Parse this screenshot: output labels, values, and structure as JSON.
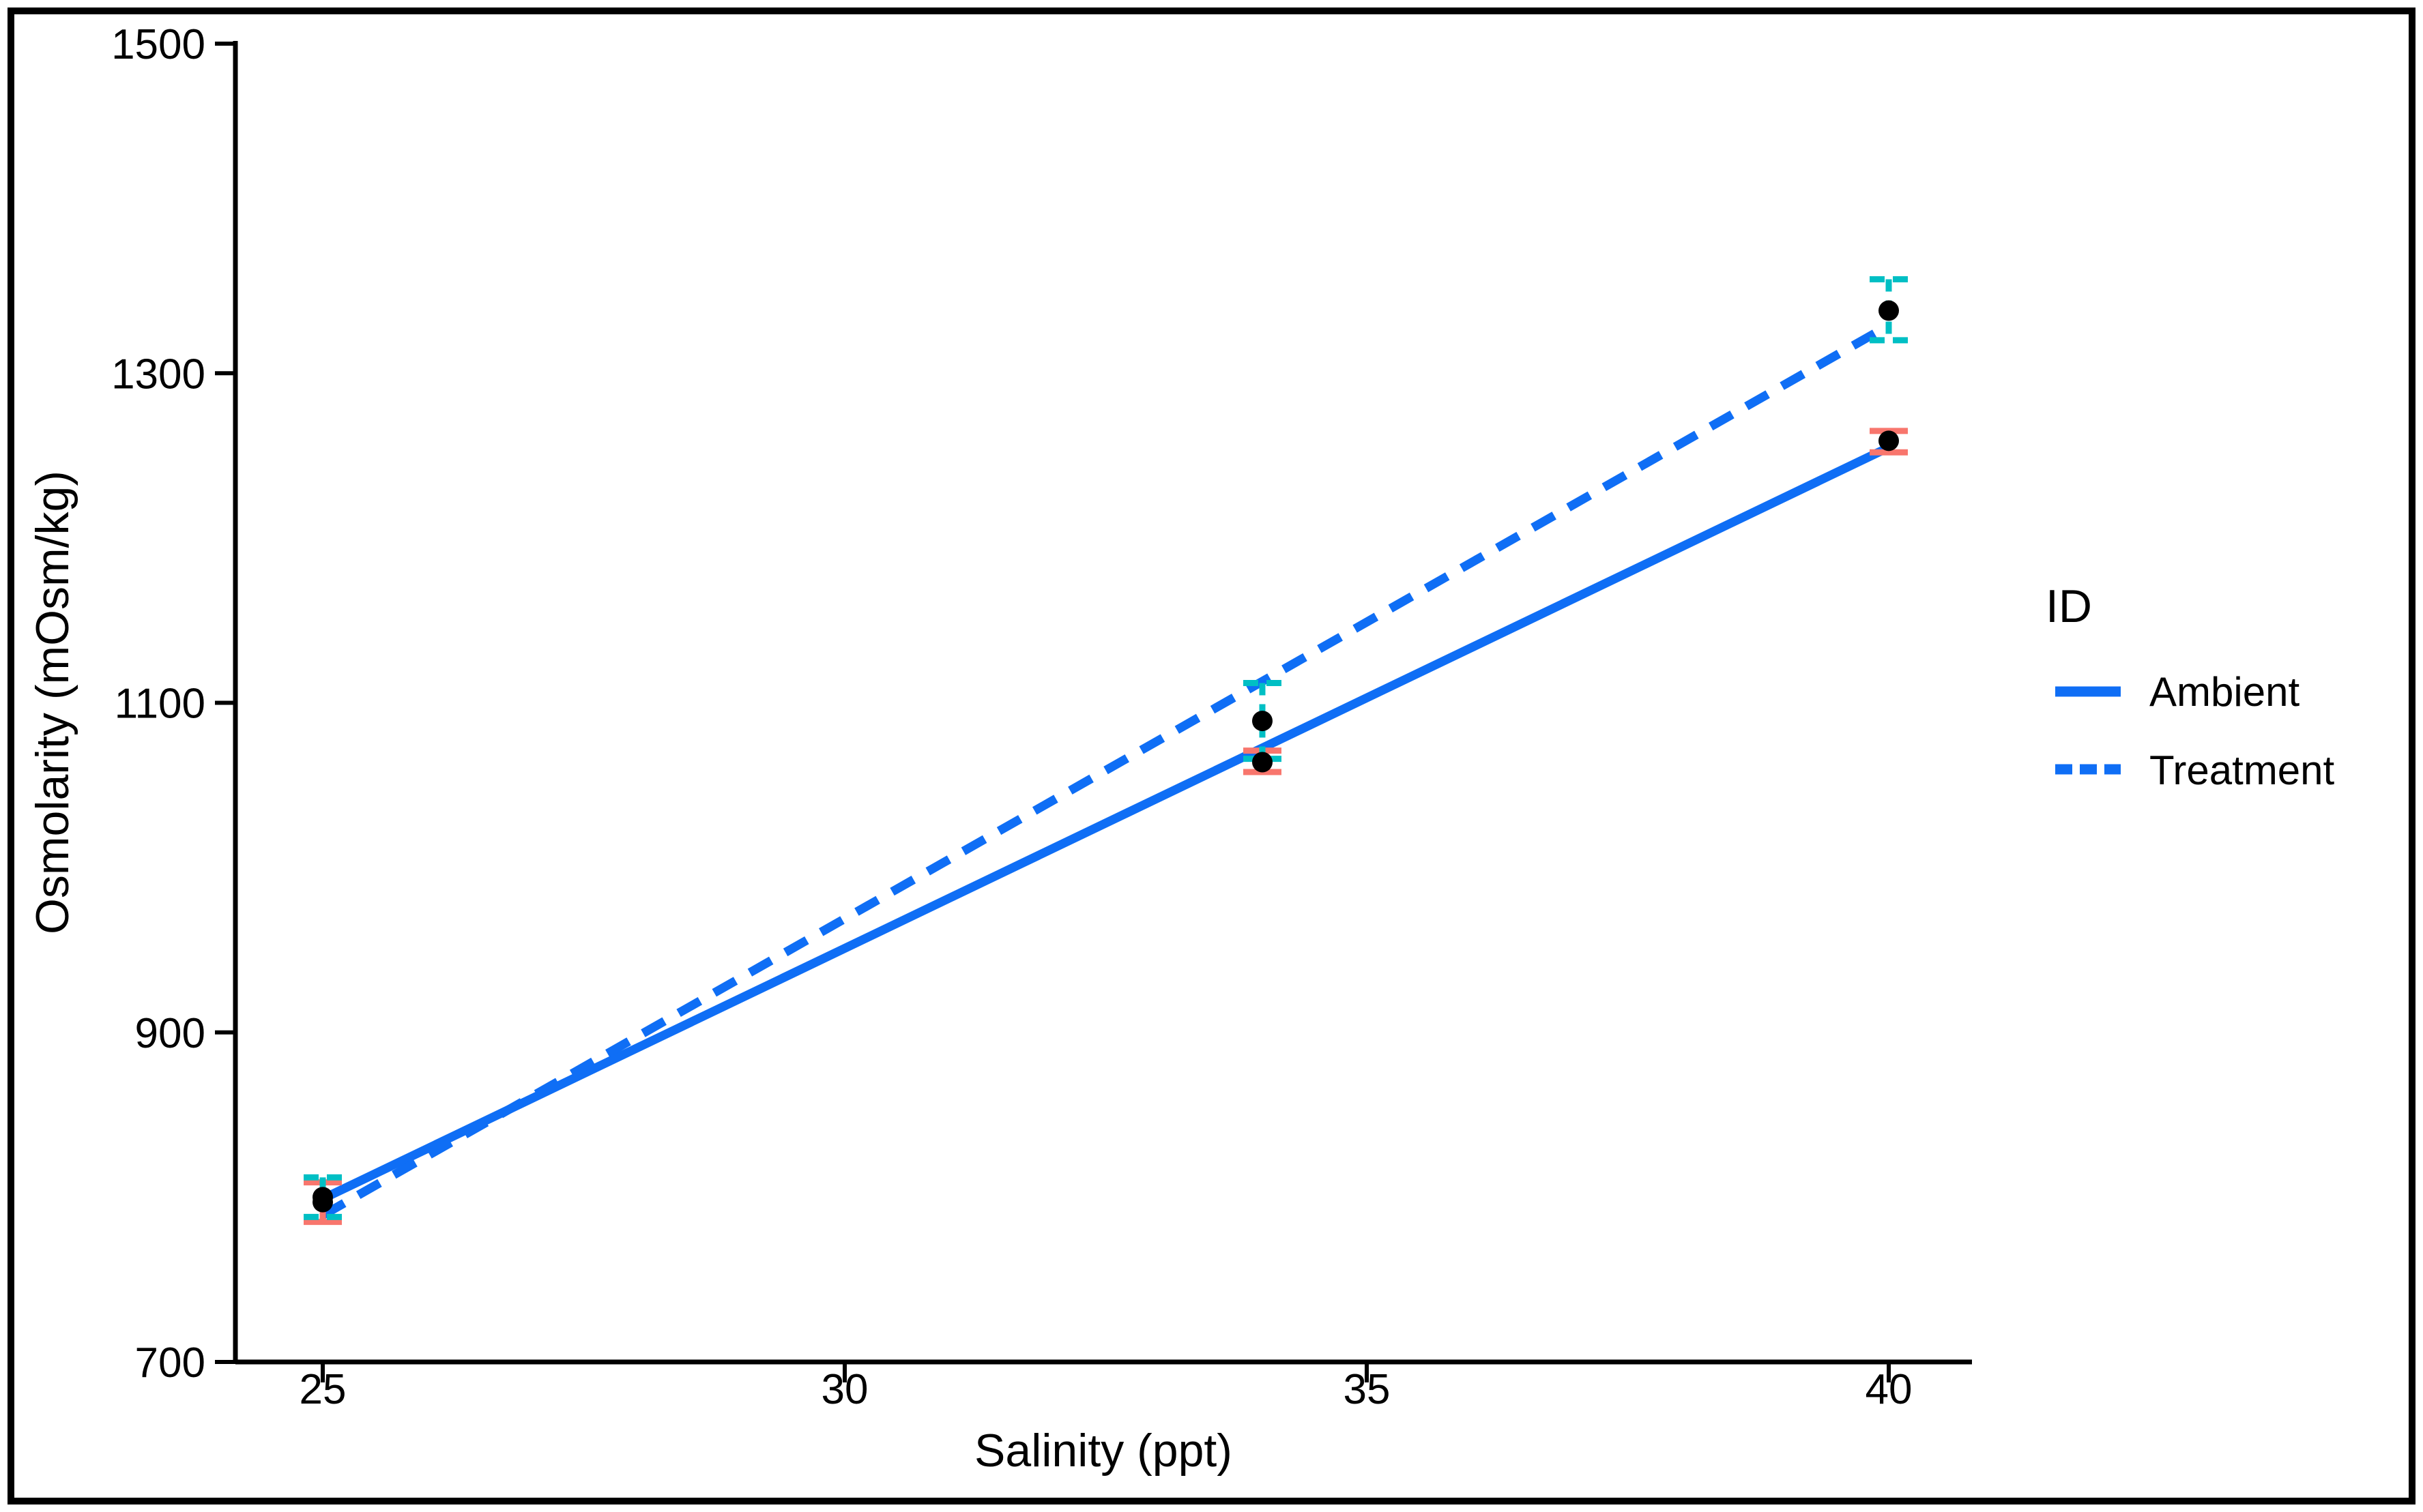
{
  "chart_data": {
    "type": "line",
    "title": "",
    "xlabel": "Salinity (ppt)",
    "ylabel": "Osmolarity (mOsm/kg)",
    "x_ticks": [
      25,
      30,
      35,
      40
    ],
    "y_ticks": [
      700,
      900,
      1100,
      1300,
      1500
    ],
    "xlim": [
      24.2,
      40.8
    ],
    "ylim": [
      700,
      1500
    ],
    "grid": "off",
    "legend": {
      "title": "ID",
      "position": "right",
      "entries": [
        {
          "label": "Ambient",
          "line_style": "solid"
        },
        {
          "label": "Treatment",
          "line_style": "dashed"
        }
      ]
    },
    "colors": {
      "line_blue": "#0F6EF5",
      "ambient_error": "#F8766D",
      "treatment_error": "#00BFC4",
      "point": "#000000",
      "axis": "#000000"
    },
    "series": [
      {
        "name": "Ambient",
        "line_style": "solid",
        "fit_line": {
          "x": [
            25,
            40
          ],
          "y": [
            799,
            1255
          ]
        },
        "points": [
          {
            "x": 25,
            "y": 797,
            "ymin": 785,
            "ymax": 809
          },
          {
            "x": 34,
            "y": 1064,
            "ymin": 1058,
            "ymax": 1071
          },
          {
            "x": 40,
            "y": 1259,
            "ymin": 1252,
            "ymax": 1265
          }
        ]
      },
      {
        "name": "Treatment",
        "line_style": "dashed",
        "fit_line": {
          "x": [
            25,
            40
          ],
          "y": [
            789,
            1329
          ]
        },
        "points": [
          {
            "x": 25,
            "y": 800,
            "ymin": 788,
            "ymax": 812
          },
          {
            "x": 34,
            "y": 1089,
            "ymin": 1066,
            "ymax": 1112
          },
          {
            "x": 40,
            "y": 1338,
            "ymin": 1320,
            "ymax": 1357
          }
        ]
      }
    ]
  }
}
